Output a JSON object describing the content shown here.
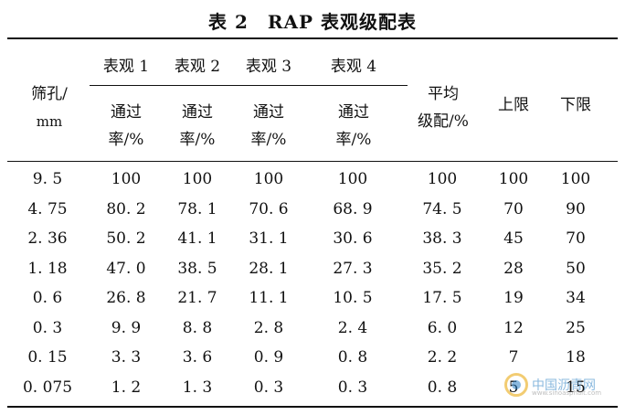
{
  "title": "表 2　RAP 表观级配表",
  "header": {
    "sieve": [
      "筛孔/",
      "mm"
    ],
    "groups": [
      "表观 1",
      "表观 2",
      "表观 3",
      "表观 4"
    ],
    "pass": [
      "通过",
      "率/%"
    ],
    "avg": [
      "平均",
      "级配/%"
    ],
    "upper": "上限",
    "lower": "下限"
  },
  "rows": [
    [
      "9. 5",
      "100",
      "100",
      "100",
      "100",
      "100",
      "100",
      "100"
    ],
    [
      "4. 75",
      "80. 2",
      "78. 1",
      "70. 6",
      "68. 9",
      "74. 5",
      "70",
      "90"
    ],
    [
      "2. 36",
      "50. 2",
      "41. 1",
      "31. 1",
      "30. 6",
      "38. 3",
      "45",
      "70"
    ],
    [
      "1. 18",
      "47. 0",
      "38. 5",
      "28. 1",
      "27. 3",
      "35. 2",
      "28",
      "50"
    ],
    [
      "0. 6",
      "26. 8",
      "21. 7",
      "11. 1",
      "10. 5",
      "17. 5",
      "19",
      "34"
    ],
    [
      "0. 3",
      "9. 9",
      "8. 8",
      "2. 8",
      "2. 4",
      "6. 0",
      "12",
      "25"
    ],
    [
      "0. 15",
      "3. 3",
      "3. 6",
      "0. 9",
      "0. 8",
      "2. 2",
      "7",
      "18"
    ],
    [
      "0. 075",
      "1. 2",
      "1. 3",
      "0. 3",
      "0. 3",
      "0. 8",
      "5",
      "15"
    ]
  ],
  "watermark": {
    "text": "中国沥青网",
    "url": "www.sinoasphalt.com"
  }
}
